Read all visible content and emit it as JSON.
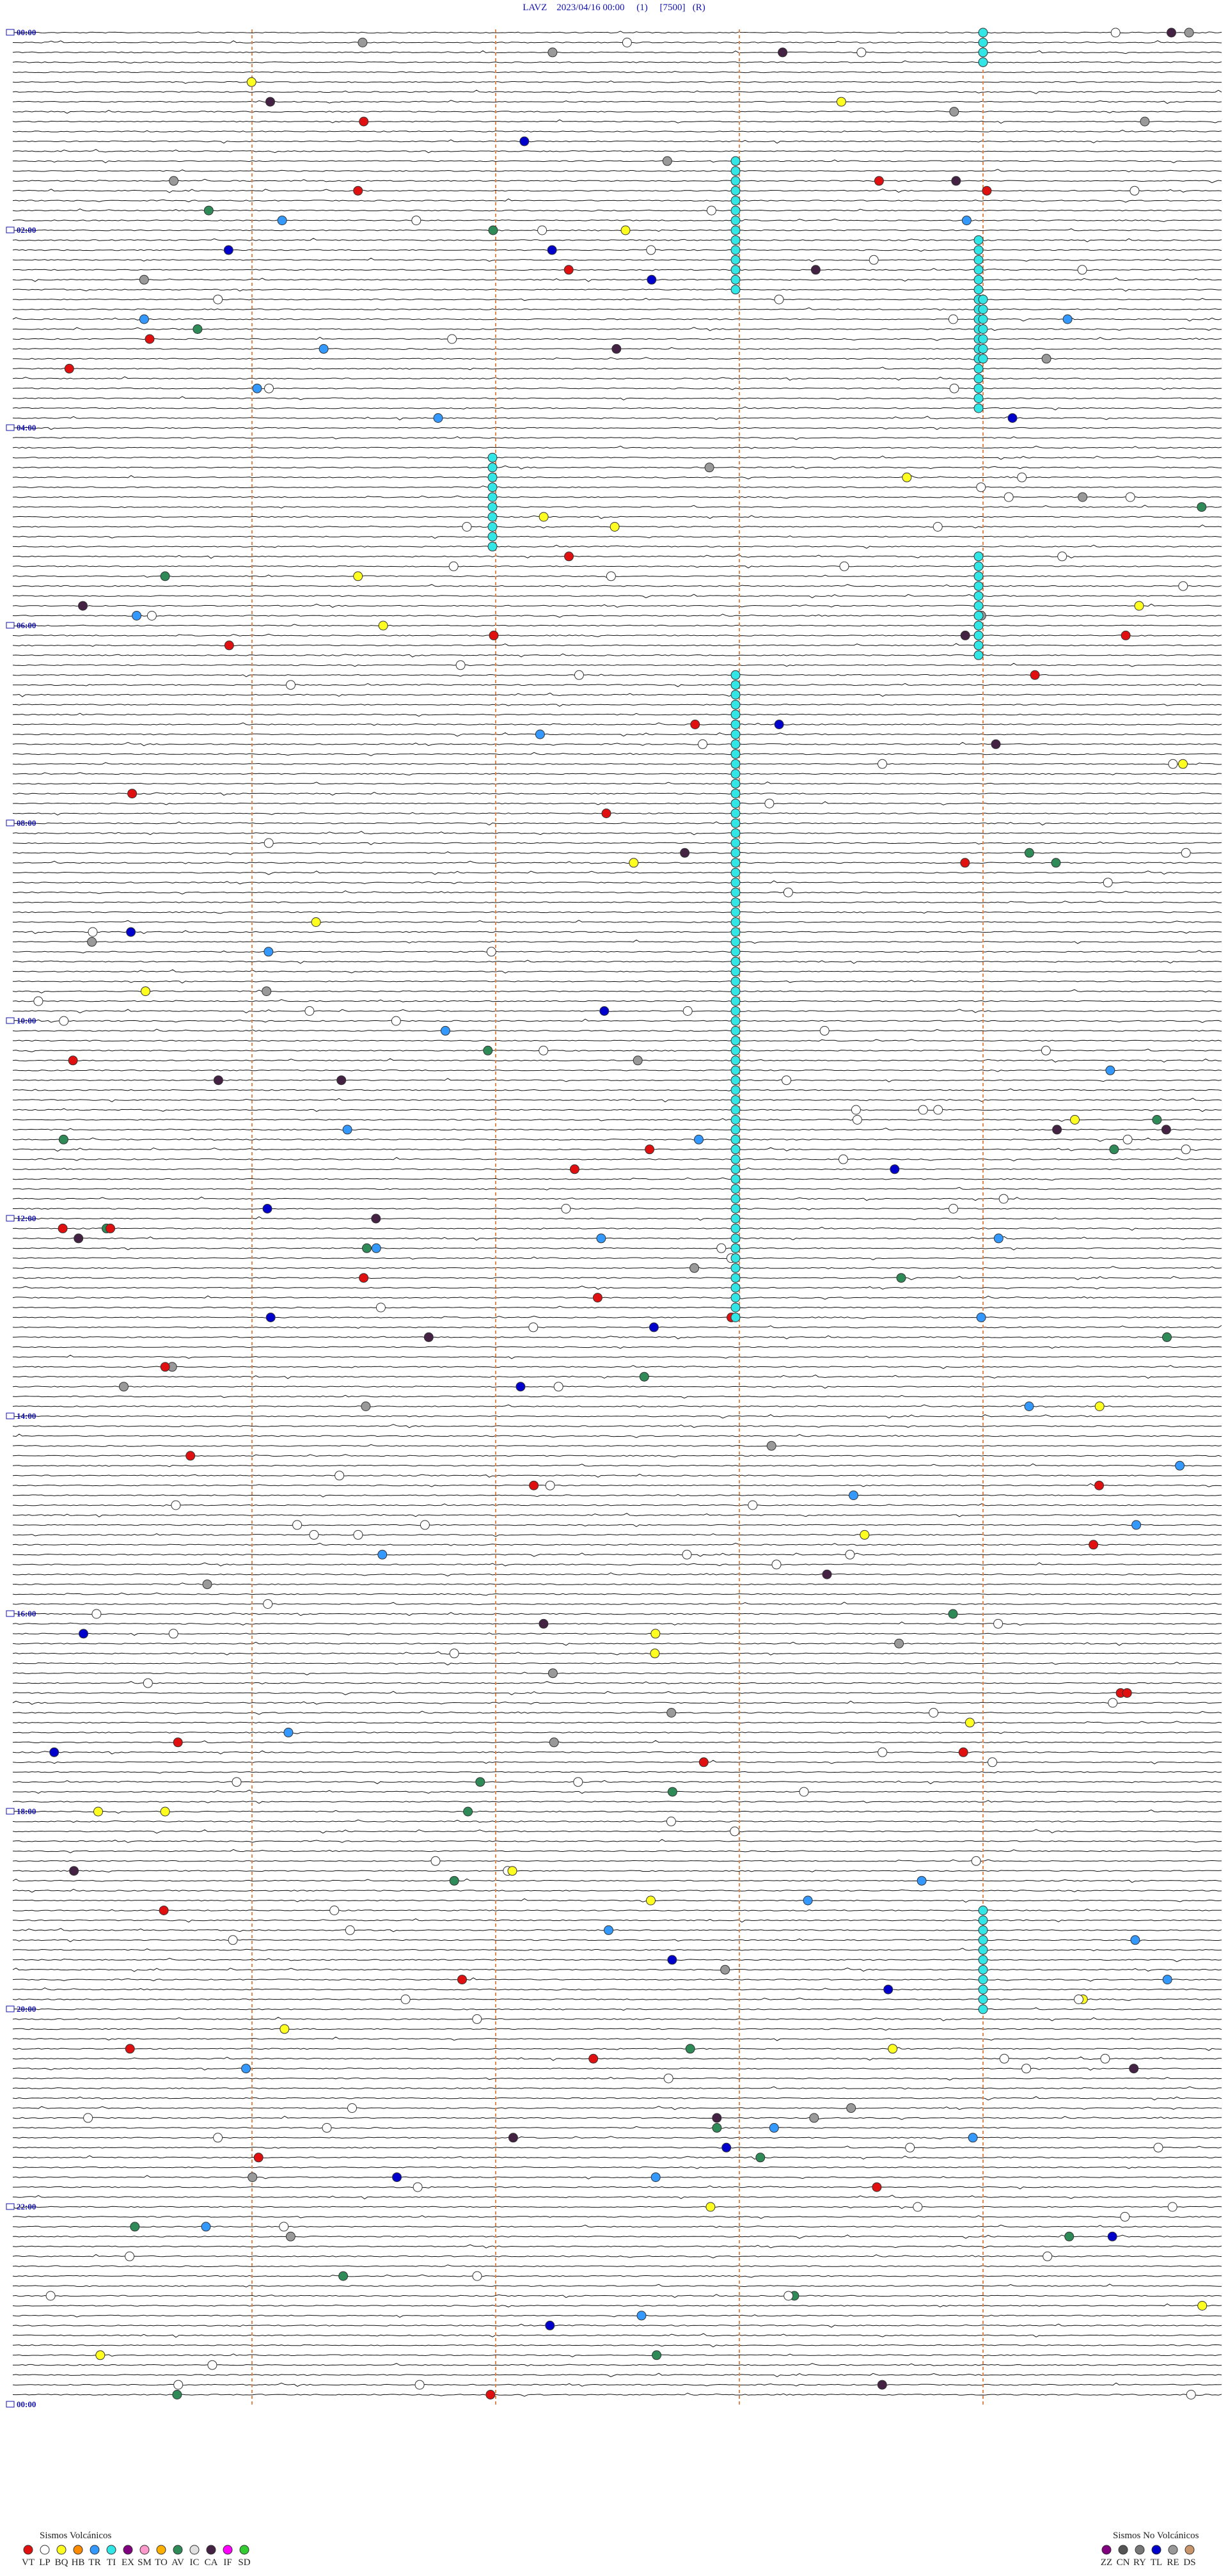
{
  "header": {
    "title": "LAVZ    2023/04/16 00:00     (1)     [7500]   (R)"
  },
  "time_labels": [
    "00:00",
    "02:00",
    "04:00",
    "06:00",
    "08:00",
    "10:00",
    "12:00",
    "14:00",
    "16:00",
    "18:00",
    "20:00",
    "22:00",
    "00:00"
  ],
  "legend": {
    "volcanic": {
      "title": "Sismos Volcánicos",
      "items": [
        {
          "label": "VT",
          "color": "#e01010"
        },
        {
          "label": "LP",
          "color": "#ffffff"
        },
        {
          "label": "BQ",
          "color": "#ffff20"
        },
        {
          "label": "HB",
          "color": "#ff8c00"
        },
        {
          "label": "TR",
          "color": "#3399ff"
        },
        {
          "label": "TI",
          "color": "#33e6e6"
        },
        {
          "label": "EX",
          "color": "#800080"
        },
        {
          "label": "SM",
          "color": "#ff99cc"
        },
        {
          "label": "TO",
          "color": "#ffb000"
        },
        {
          "label": "AV",
          "color": "#2e8b57"
        },
        {
          "label": "IC",
          "color": "#e0e0e0"
        },
        {
          "label": "CA",
          "color": "#442244"
        },
        {
          "label": "IF",
          "color": "#ff00ff"
        },
        {
          "label": "SD",
          "color": "#33cc33"
        }
      ]
    },
    "non_volcanic": {
      "title": "Sismos No Volcánicos",
      "items": [
        {
          "label": "ZZ",
          "color": "#800080"
        },
        {
          "label": "CN",
          "color": "#555555"
        },
        {
          "label": "RY",
          "color": "#777777"
        },
        {
          "label": "TL",
          "color": "#0000cc"
        },
        {
          "label": "RE",
          "color": "#999999"
        },
        {
          "label": "DS",
          "color": "#c9956b"
        }
      ]
    }
  }
}
